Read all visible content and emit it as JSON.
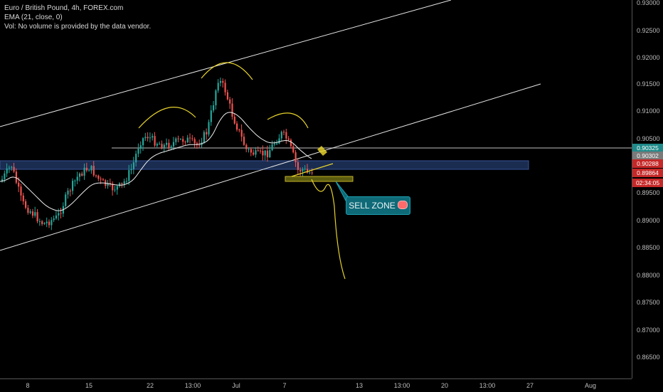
{
  "legend": {
    "symbol_line": "Euro / British Pound, 4h, FOREX.com",
    "ema_line": "EMA (21, close, 0)",
    "vol_line": "Vol: No volume is provided by the data vendor."
  },
  "price_axis": {
    "ticks": [
      "0.93000",
      "0.92500",
      "0.92000",
      "0.91500",
      "0.91000",
      "0.90500",
      "0.90000",
      "0.89500",
      "0.89000",
      "0.88500",
      "0.88000",
      "0.87500",
      "0.87000",
      "0.86500"
    ]
  },
  "price_badges": [
    {
      "label": "0.90325",
      "color": "#1f8a8a"
    },
    {
      "label": "0.90302",
      "color": "#7a7a7a"
    },
    {
      "label": "0.90288",
      "color": "#c62828"
    },
    {
      "label": "0.89864",
      "color": "#c62828"
    },
    {
      "label": "02:34:05",
      "color": "#c62828"
    }
  ],
  "time_axis": {
    "ticks": [
      "8",
      "15",
      "22",
      "13:00",
      "Jul",
      "7",
      "13",
      "13:00",
      "20",
      "13:00",
      "27",
      "Aug"
    ]
  },
  "annotation": {
    "sell_zone_label": "SELL ZONE"
  },
  "colors": {
    "background": "#000000",
    "bull": "#26a69a",
    "bear": "#ef5350",
    "ema": "#f0f0f0",
    "channel": "#e6e6e6",
    "zone_fill": "#1c2f55",
    "drawing": "#e6d22b"
  },
  "chart_data": {
    "type": "candlestick",
    "title": "Euro / British Pound, 4h, FOREX.com",
    "ylim": [
      0.8625,
      0.9305
    ],
    "indicators": [
      "EMA (21, close, 0)"
    ],
    "key_levels": {
      "resistance": 0.90325,
      "support_zone": [
        0.8998,
        0.9014
      ]
    },
    "ohlc_approx": {
      "start_close": 0.9005,
      "low": 0.8895,
      "high": 0.9177,
      "last_close": 0.89864
    }
  }
}
